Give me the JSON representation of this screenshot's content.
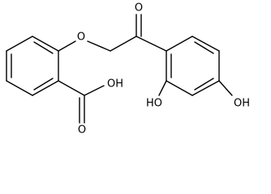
{
  "atoms": [
    {
      "label": "O"
    },
    {
      "label": "O"
    },
    {
      "label": "OH"
    },
    {
      "label": "O"
    },
    {
      "label": "HO"
    },
    {
      "label": "OH"
    }
  ]
}
